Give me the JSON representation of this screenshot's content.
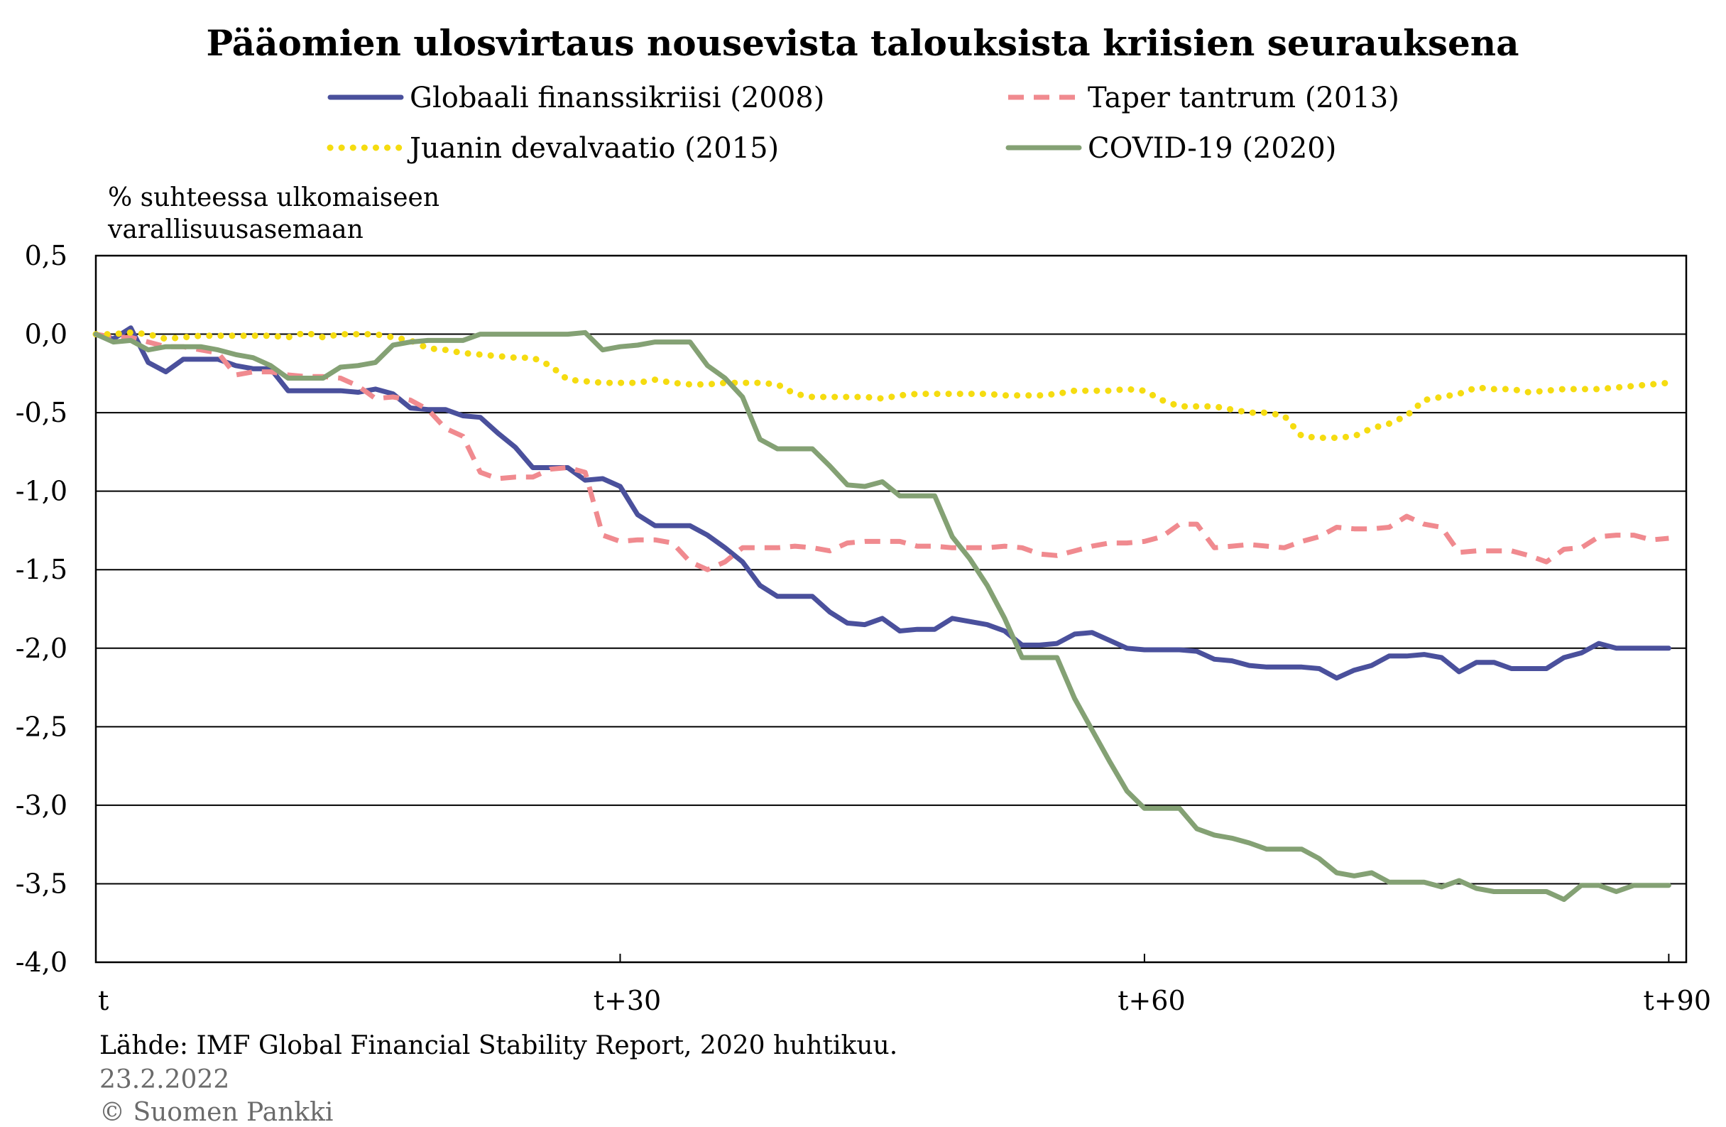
{
  "chart_data": {
    "type": "line",
    "title": "Pääomien ulosvirtaus nousevista talouksista kriisien seurauksena",
    "ylabel_lines": [
      "% suhteessa ulkomaiseen",
      "varallisuusasemaan"
    ],
    "ylim": [
      -4.0,
      0.5
    ],
    "yticks": [
      0.5,
      0.0,
      -0.5,
      -1.0,
      -1.5,
      -2.0,
      -2.5,
      -3.0,
      -3.5,
      -4.0
    ],
    "ytick_labels": [
      "0,5",
      "0,0",
      "-0,5",
      "-1,0",
      "-1,5",
      "-2,0",
      "-2,5",
      "-3,0",
      "-3,5",
      "-4,0"
    ],
    "xlim": [
      0,
      91
    ],
    "xticks": [
      0,
      30,
      60,
      90
    ],
    "xtick_labels": [
      "t",
      "t+30",
      "t+60",
      "t+90"
    ],
    "grid": "horizontal",
    "legend": "top",
    "series": [
      {
        "name": "Globaali finanssikriisi (2008)",
        "color": "#4a509c",
        "dash": "solid",
        "x": [
          0,
          1,
          2,
          3,
          4,
          5,
          6,
          7,
          8,
          9,
          10,
          11,
          12,
          13,
          14,
          15,
          16,
          17,
          18,
          19,
          20,
          21,
          22,
          23,
          24,
          25,
          26,
          27,
          28,
          29,
          30,
          31,
          32,
          33,
          34,
          35,
          36,
          37,
          38,
          39,
          40,
          41,
          42,
          43,
          44,
          45,
          46,
          47,
          48,
          49,
          50,
          51,
          52,
          53,
          54,
          55,
          56,
          57,
          58,
          59,
          60,
          61,
          62,
          63,
          64,
          65,
          66,
          67,
          68,
          69,
          70,
          71,
          72,
          73,
          74,
          75,
          76,
          77,
          78,
          79,
          80,
          81,
          82,
          83,
          84,
          85,
          86,
          87,
          88,
          89,
          90
        ],
        "values": [
          0.0,
          -0.03,
          0.04,
          -0.18,
          -0.24,
          -0.16,
          -0.16,
          -0.16,
          -0.2,
          -0.22,
          -0.22,
          -0.36,
          -0.36,
          -0.36,
          -0.36,
          -0.37,
          -0.35,
          -0.38,
          -0.47,
          -0.48,
          -0.48,
          -0.52,
          -0.53,
          -0.63,
          -0.72,
          -0.85,
          -0.85,
          -0.85,
          -0.93,
          -0.92,
          -0.97,
          -1.15,
          -1.22,
          -1.22,
          -1.22,
          -1.28,
          -1.36,
          -1.45,
          -1.6,
          -1.67,
          -1.67,
          -1.67,
          -1.77,
          -1.84,
          -1.85,
          -1.81,
          -1.89,
          -1.88,
          -1.88,
          -1.81,
          -1.83,
          -1.85,
          -1.89,
          -1.98,
          -1.98,
          -1.97,
          -1.91,
          -1.9,
          -1.95,
          -2.0,
          -2.01,
          -2.01,
          -2.01,
          -2.02,
          -2.07,
          -2.08,
          -2.11,
          -2.12,
          -2.12,
          -2.12,
          -2.13,
          -2.19,
          -2.14,
          -2.11,
          -2.05,
          -2.05,
          -2.04,
          -2.06,
          -2.15,
          -2.09,
          -2.09,
          -2.13,
          -2.13,
          -2.13,
          -2.06,
          -2.03,
          -1.97,
          -2.0,
          -2.0,
          -2.0,
          -2.0
        ]
      },
      {
        "name": "Taper tantrum (2013)",
        "color": "#f08a8f",
        "dash": "dashed",
        "x": [
          0,
          1,
          2,
          3,
          4,
          5,
          6,
          7,
          8,
          9,
          10,
          11,
          12,
          13,
          14,
          15,
          16,
          17,
          18,
          19,
          20,
          21,
          22,
          23,
          24,
          25,
          26,
          27,
          28,
          29,
          30,
          31,
          32,
          33,
          34,
          35,
          36,
          37,
          38,
          39,
          40,
          41,
          42,
          43,
          44,
          45,
          46,
          47,
          48,
          49,
          50,
          51,
          52,
          53,
          54,
          55,
          56,
          57,
          58,
          59,
          60,
          61,
          62,
          63,
          64,
          65,
          66,
          67,
          68,
          69,
          70,
          71,
          72,
          73,
          74,
          75,
          76,
          77,
          78,
          79,
          80,
          81,
          82,
          83,
          84,
          85,
          86,
          87,
          88,
          89,
          90
        ],
        "values": [
          0.0,
          -0.02,
          -0.02,
          -0.05,
          -0.08,
          -0.08,
          -0.1,
          -0.12,
          -0.26,
          -0.24,
          -0.24,
          -0.26,
          -0.27,
          -0.27,
          -0.28,
          -0.33,
          -0.41,
          -0.4,
          -0.42,
          -0.48,
          -0.6,
          -0.65,
          -0.88,
          -0.92,
          -0.91,
          -0.91,
          -0.86,
          -0.85,
          -0.88,
          -1.28,
          -1.32,
          -1.31,
          -1.31,
          -1.33,
          -1.45,
          -1.5,
          -1.45,
          -1.36,
          -1.36,
          -1.36,
          -1.35,
          -1.36,
          -1.38,
          -1.33,
          -1.32,
          -1.32,
          -1.32,
          -1.35,
          -1.35,
          -1.36,
          -1.36,
          -1.36,
          -1.35,
          -1.36,
          -1.4,
          -1.41,
          -1.38,
          -1.35,
          -1.33,
          -1.33,
          -1.32,
          -1.29,
          -1.21,
          -1.21,
          -1.36,
          -1.35,
          -1.34,
          -1.35,
          -1.36,
          -1.32,
          -1.29,
          -1.23,
          -1.24,
          -1.24,
          -1.23,
          -1.16,
          -1.21,
          -1.23,
          -1.39,
          -1.38,
          -1.38,
          -1.38,
          -1.41,
          -1.45,
          -1.37,
          -1.36,
          -1.29,
          -1.28,
          -1.28,
          -1.31,
          -1.3
        ]
      },
      {
        "name": "Juanin devalvaatio (2015)",
        "color": "#f5dc10",
        "dash": "dotted",
        "x": [
          0,
          1,
          2,
          3,
          4,
          5,
          6,
          7,
          8,
          9,
          10,
          11,
          12,
          13,
          14,
          15,
          16,
          17,
          18,
          19,
          20,
          21,
          22,
          23,
          24,
          25,
          26,
          27,
          28,
          29,
          30,
          31,
          32,
          33,
          34,
          35,
          36,
          37,
          38,
          39,
          40,
          41,
          42,
          43,
          44,
          45,
          46,
          47,
          48,
          49,
          50,
          51,
          52,
          53,
          54,
          55,
          56,
          57,
          58,
          59,
          60,
          61,
          62,
          63,
          64,
          65,
          66,
          67,
          68,
          69,
          70,
          71,
          72,
          73,
          74,
          75,
          76,
          77,
          78,
          79,
          80,
          81,
          82,
          83,
          84,
          85,
          86,
          87,
          88,
          89,
          90
        ],
        "values": [
          0.0,
          0.0,
          0.01,
          0.0,
          -0.03,
          -0.02,
          -0.01,
          -0.01,
          -0.01,
          -0.01,
          -0.01,
          -0.02,
          0.01,
          -0.02,
          0.0,
          0.0,
          0.0,
          -0.02,
          -0.04,
          -0.09,
          -0.1,
          -0.12,
          -0.13,
          -0.14,
          -0.15,
          -0.15,
          -0.2,
          -0.29,
          -0.3,
          -0.31,
          -0.31,
          -0.31,
          -0.29,
          -0.31,
          -0.32,
          -0.32,
          -0.31,
          -0.31,
          -0.31,
          -0.32,
          -0.38,
          -0.4,
          -0.4,
          -0.4,
          -0.4,
          -0.41,
          -0.39,
          -0.38,
          -0.38,
          -0.38,
          -0.38,
          -0.38,
          -0.39,
          -0.39,
          -0.39,
          -0.38,
          -0.36,
          -0.36,
          -0.36,
          -0.35,
          -0.36,
          -0.42,
          -0.46,
          -0.46,
          -0.46,
          -0.48,
          -0.5,
          -0.5,
          -0.52,
          -0.65,
          -0.66,
          -0.66,
          -0.65,
          -0.6,
          -0.57,
          -0.52,
          -0.42,
          -0.4,
          -0.38,
          -0.34,
          -0.35,
          -0.35,
          -0.37,
          -0.36,
          -0.35,
          -0.35,
          -0.35,
          -0.34,
          -0.33,
          -0.32,
          -0.31
        ]
      },
      {
        "name": "COVID-19 (2020)",
        "color": "#84a174",
        "dash": "solid",
        "x": [
          0,
          1,
          2,
          3,
          4,
          5,
          6,
          7,
          8,
          9,
          10,
          11,
          12,
          13,
          14,
          15,
          16,
          17,
          18,
          19,
          20,
          21,
          22,
          23,
          24,
          25,
          26,
          27,
          28,
          29,
          30,
          31,
          32,
          33,
          34,
          35,
          36,
          37,
          38,
          39,
          40,
          41,
          42,
          43,
          44,
          45,
          46,
          47,
          48,
          49,
          50,
          51,
          52,
          53,
          54,
          55,
          56,
          57,
          58,
          59,
          60,
          61,
          62,
          63,
          64,
          65,
          66,
          67,
          68,
          69,
          70,
          71,
          72,
          73,
          74,
          75,
          76,
          77,
          78,
          79,
          80,
          81,
          82,
          83,
          84,
          85,
          86,
          87,
          88,
          89,
          90
        ],
        "values": [
          0.0,
          -0.05,
          -0.04,
          -0.1,
          -0.08,
          -0.08,
          -0.08,
          -0.1,
          -0.13,
          -0.15,
          -0.2,
          -0.28,
          -0.28,
          -0.28,
          -0.21,
          -0.2,
          -0.18,
          -0.07,
          -0.05,
          -0.04,
          -0.04,
          -0.04,
          0.0,
          0.0,
          0.0,
          0.0,
          0.0,
          0.0,
          0.01,
          -0.1,
          -0.08,
          -0.07,
          -0.05,
          -0.05,
          -0.05,
          -0.2,
          -0.28,
          -0.4,
          -0.67,
          -0.73,
          -0.73,
          -0.73,
          -0.84,
          -0.96,
          -0.97,
          -0.94,
          -1.03,
          -1.03,
          -1.03,
          -1.29,
          -1.43,
          -1.6,
          -1.81,
          -2.06,
          -2.06,
          -2.06,
          -2.32,
          -2.52,
          -2.72,
          -2.91,
          -3.02,
          -3.02,
          -3.02,
          -3.15,
          -3.19,
          -3.21,
          -3.24,
          -3.28,
          -3.28,
          -3.28,
          -3.34,
          -3.43,
          -3.45,
          -3.43,
          -3.49,
          -3.49,
          -3.49,
          -3.52,
          -3.48,
          -3.53,
          -3.55,
          -3.55,
          -3.55,
          -3.55,
          -3.6,
          -3.51,
          -3.51,
          -3.55,
          -3.51,
          -3.51,
          -3.51
        ]
      }
    ]
  },
  "footer": {
    "source": "Lähde: IMF Global Financial Stability Report, 2020 huhtikuu.",
    "date": "23.2.2022",
    "copyright": "© Suomen Pankki"
  }
}
